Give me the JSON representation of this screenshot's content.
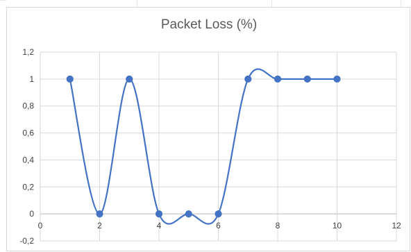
{
  "chart_data": {
    "type": "line",
    "title": "Packet Loss (%)",
    "xlabel": "",
    "ylabel": "",
    "smooth": true,
    "grid": "both",
    "xlim": [
      0,
      12
    ],
    "ylim": [
      -0.2,
      1.2
    ],
    "x_ticks": [
      "0",
      "2",
      "4",
      "6",
      "8",
      "10",
      "12"
    ],
    "y_ticks": [
      "-0,2",
      "0",
      "0,2",
      "0,4",
      "0,6",
      "0,8",
      "1",
      "1,2"
    ],
    "x_tick_values": [
      0,
      2,
      4,
      6,
      8,
      10,
      12
    ],
    "y_tick_values": [
      -0.2,
      0,
      0.2,
      0.4,
      0.6,
      0.8,
      1,
      1.2
    ],
    "series": [
      {
        "color": "#4472c4",
        "x": [
          1,
          2,
          3,
          4,
          5,
          6,
          7,
          8,
          9,
          10
        ],
        "y": [
          1,
          0,
          1,
          0,
          0,
          0,
          1,
          1,
          1,
          1
        ]
      }
    ]
  }
}
